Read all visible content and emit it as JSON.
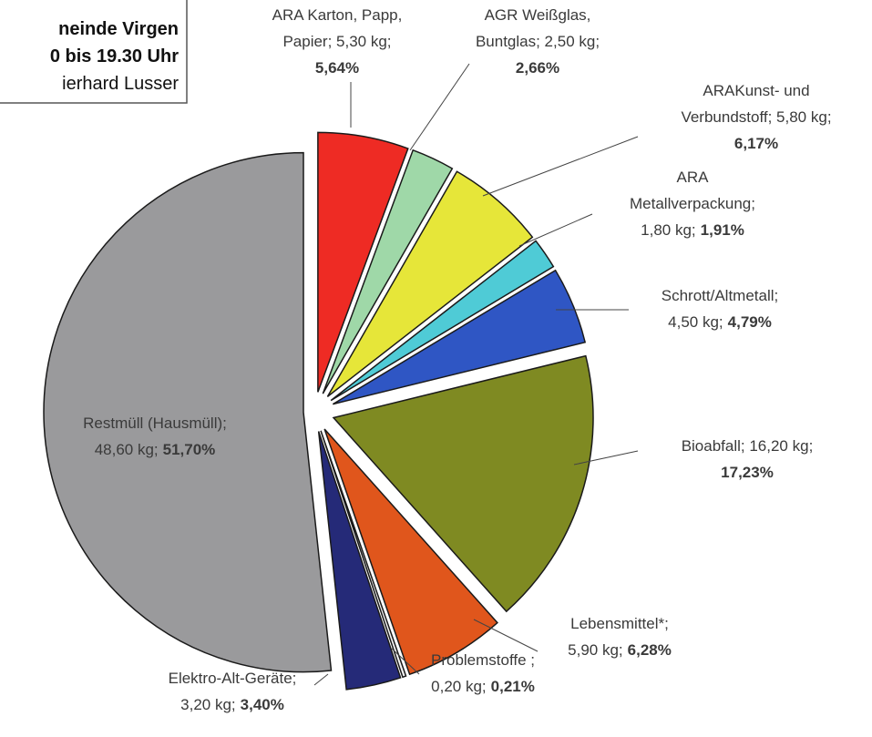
{
  "chart_data": {
    "type": "pie",
    "annotations": [
      "neinde Virgen",
      "0 bis 19.30 Uhr",
      "ierhard Lusser"
    ],
    "labels": [
      [
        "ARA Karton, Papp,",
        "Papier; 5,30 kg;"
      ],
      [
        "AGR Weißglas,",
        "Buntglas; 2,50 kg;"
      ],
      [
        "ARAKunst- und",
        "Verbundstoff; 5,80 kg;"
      ],
      [
        "ARA",
        "Metallverpackung;",
        "1,80 kg;"
      ],
      [
        "Schrott/Altmetall;",
        "4,50 kg;"
      ],
      [
        "Bioabfall; 16,20 kg;"
      ],
      [
        "Lebensmittel*;",
        "5,90 kg;"
      ],
      [
        "Problemstoffe ;",
        "0,20 kg;"
      ],
      [
        "Elektro-Alt-Geräte;",
        "3,20 kg;"
      ],
      [
        "Restmüll (Hausmüll);",
        "48,60 kg;"
      ]
    ],
    "values": [
      5.64,
      2.66,
      6.17,
      1.91,
      4.79,
      17.23,
      6.28,
      0.21,
      3.4,
      51.7
    ],
    "value_labels": [
      "5,64%",
      "2,66%",
      "6,17%",
      "1,91%",
      "4,79%",
      "17,23%",
      "6,28%",
      "0,21%",
      "3,40%",
      "51,70%"
    ],
    "colors": [
      "#ee2b24",
      "#9fd8a8",
      "#e6e639",
      "#4fcbd6",
      "#2f56c4",
      "#7f8a22",
      "#e0561c",
      "#f4f4f4",
      "#252a78",
      "#9a9a9c"
    ]
  }
}
